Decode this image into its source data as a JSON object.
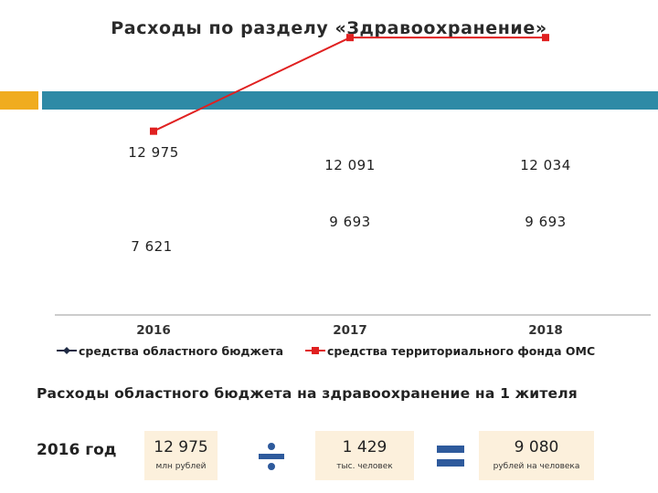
{
  "title": "Расходы по разделу «Здравоохранение»",
  "chart_data": {
    "type": "line",
    "categories": [
      "2016",
      "2017",
      "2018"
    ],
    "series": [
      {
        "name": "средства областного бюджета",
        "values": [
          12975,
          12091,
          12034
        ],
        "labels": [
          "12 975",
          "12 091",
          "12 034"
        ],
        "color": "#1f2a44",
        "marker": "diamond"
      },
      {
        "name": "средства территориального фонда ОМС",
        "values": [
          7621,
          9693,
          9693
        ],
        "labels": [
          "7 621",
          "9 693",
          "9 693"
        ],
        "color": "#e02020",
        "marker": "square"
      }
    ],
    "ylim": [
      0,
      16000
    ],
    "grid": false,
    "legend": "bottom",
    "title": "",
    "xlabel": "",
    "ylabel": ""
  },
  "calc": {
    "heading": "Расходы областного бюджета на здравоохранение на 1 жителя",
    "year_label": "2016 год",
    "boxes": [
      {
        "value": "12  975",
        "unit": "млн рублей"
      },
      {
        "value": "1 429",
        "unit": "тыс. человек"
      },
      {
        "value": "9 080",
        "unit": "рублей на человека"
      }
    ],
    "operator_colors": {
      "divide": "#2e5a9c",
      "equals": "#2e5a9c"
    }
  },
  "colors": {
    "accent_orange": "#f0ac1f",
    "accent_teal": "#2e8aa6",
    "box_fill": "#fcf0dc"
  }
}
